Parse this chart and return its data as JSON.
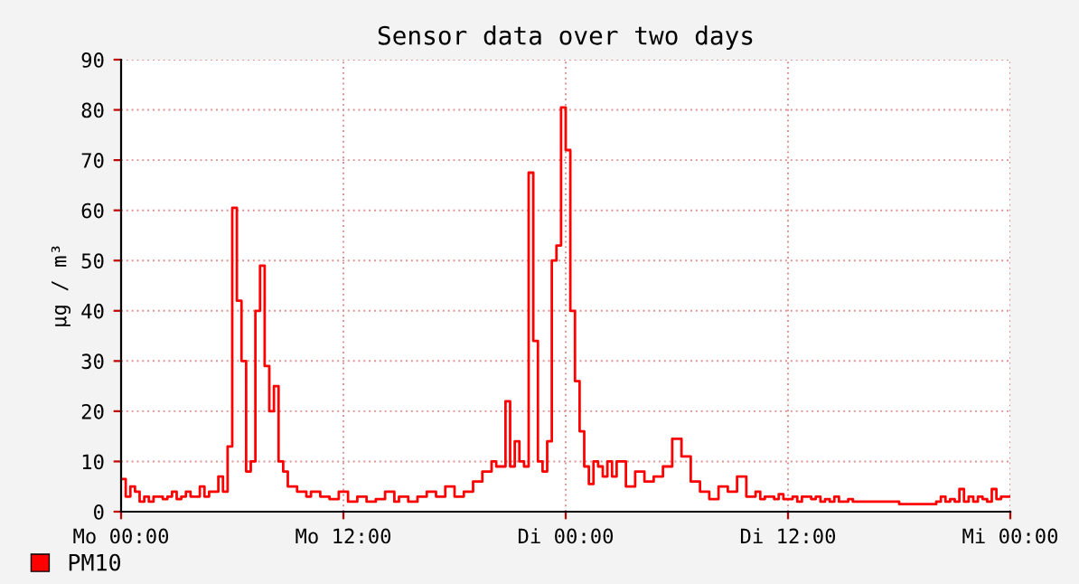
{
  "chart_data": {
    "type": "step",
    "title": "Sensor data over two days",
    "ylabel": "µg / m³",
    "categories": [
      "Mo 00:00",
      null,
      null,
      null,
      null,
      null,
      null,
      null,
      null,
      null,
      null,
      null,
      null,
      null,
      null,
      null,
      null,
      null,
      null,
      null,
      null,
      null,
      null,
      null,
      null,
      null,
      null,
      null,
      null,
      null,
      null,
      null,
      null,
      null,
      null,
      null,
      null,
      null,
      null,
      null,
      null,
      null,
      null,
      null,
      null,
      null,
      null,
      null,
      "Mo 12:00",
      null,
      null,
      null,
      null,
      null,
      null,
      null,
      null,
      null,
      null,
      null,
      null,
      null,
      null,
      null,
      null,
      null,
      null,
      null,
      null,
      null,
      null,
      null,
      null,
      null,
      null,
      null,
      null,
      null,
      null,
      null,
      null,
      null,
      null,
      null,
      null,
      null,
      null,
      null,
      null,
      null,
      null,
      null,
      null,
      null,
      null,
      null,
      "Di 00:00",
      null,
      null,
      null,
      null,
      null,
      null,
      null,
      null,
      null,
      null,
      null,
      null,
      null,
      null,
      null,
      null,
      null,
      null,
      null,
      null,
      null,
      null,
      null,
      null,
      null,
      null,
      null,
      null,
      null,
      null,
      null,
      null,
      null,
      null,
      null,
      null,
      null,
      null,
      null,
      null,
      null,
      null,
      null,
      null,
      null,
      null,
      null,
      "Di 12:00",
      null,
      null,
      null,
      null,
      null,
      null,
      null,
      null,
      null,
      null,
      null,
      null,
      null,
      null,
      null,
      null,
      null,
      null,
      null,
      null,
      null,
      null,
      null,
      null,
      null,
      null,
      null,
      null,
      null,
      null,
      null,
      null,
      null,
      null,
      null,
      null,
      null,
      null,
      null,
      null,
      null,
      null,
      null,
      null,
      null,
      null,
      null,
      "Mi 00:00"
    ],
    "series": [
      {
        "name": "PM10",
        "color": "#ff0000",
        "values": [
          6.5,
          3,
          5,
          4,
          2,
          3,
          2,
          3,
          3,
          2.5,
          3,
          4,
          2.5,
          3,
          4,
          3,
          3,
          5,
          3,
          4,
          4,
          7,
          4,
          13,
          60.5,
          42,
          30,
          8,
          10,
          40,
          49,
          29,
          20,
          25,
          10,
          8,
          5,
          5,
          4,
          4,
          3,
          4,
          4,
          3,
          3,
          2.5,
          2.5,
          4,
          4,
          2,
          2,
          3,
          3,
          2,
          2,
          2.5,
          2.5,
          4,
          4,
          2,
          3,
          3,
          2,
          2,
          3,
          3,
          4,
          4,
          3,
          3,
          5,
          5,
          3,
          3,
          4,
          4,
          6,
          6,
          8,
          8,
          10,
          9,
          9,
          22,
          9,
          14,
          10,
          9,
          67.5,
          34,
          10,
          8,
          14,
          50,
          53,
          80.5,
          72,
          40,
          26,
          16,
          9,
          5.5,
          10,
          9,
          7,
          10,
          7,
          10,
          10,
          5,
          5,
          8,
          8,
          6,
          6,
          7,
          7,
          9,
          9,
          14.5,
          14.5,
          11,
          11,
          6,
          6,
          4,
          4,
          2.5,
          2.5,
          5,
          5,
          4,
          4,
          7,
          7,
          3,
          3,
          4,
          2.5,
          3,
          3,
          2.5,
          3.5,
          2.5,
          2.5,
          3,
          2,
          3,
          3,
          2.5,
          3,
          2,
          2.5,
          2,
          3,
          2,
          2,
          2.5,
          2,
          2,
          2,
          2,
          2,
          2,
          2,
          2,
          2,
          2,
          1.5,
          1.5,
          1.5,
          1.5,
          1.5,
          1.5,
          1.5,
          1.5,
          2,
          3,
          2,
          2.5,
          2,
          4.5,
          2,
          3,
          2,
          3,
          2.5,
          2,
          4.5,
          2.5,
          3,
          3,
          3
        ]
      }
    ],
    "ylim": [
      0,
      90
    ],
    "yticks": [
      0,
      10,
      20,
      30,
      40,
      50,
      60,
      70,
      80,
      90
    ],
    "grid": true,
    "legend": "bottom left"
  }
}
